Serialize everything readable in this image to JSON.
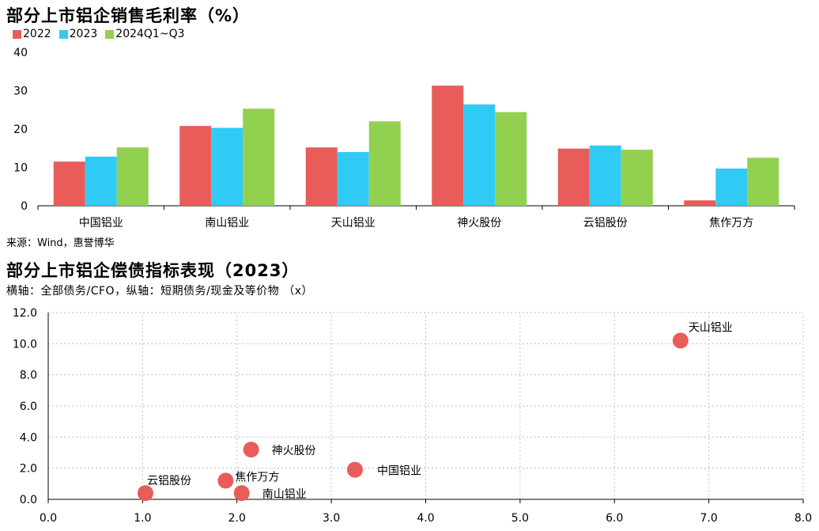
{
  "charts": {
    "bar_title": "部分上市铝企销售毛利率（%）",
    "bar_source": "来源：Wind，惠誉博华",
    "scatter_title": "部分上市铝企偿债指标表现（2023）",
    "scatter_subtitle": "横轴：全部债务/CFO，纵轴：短期债务/现金及等价物 （x）"
  },
  "chart_data": [
    {
      "type": "bar",
      "title": "部分上市铝企销售毛利率（%）",
      "categories": [
        "中国铝业",
        "南山铝业",
        "天山铝业",
        "神火股份",
        "云铝股份",
        "焦作万方"
      ],
      "series": [
        {
          "name": "2022",
          "color": "#e85c5a",
          "values": [
            11.5,
            20.8,
            15.2,
            31.3,
            14.9,
            1.4
          ]
        },
        {
          "name": "2023",
          "color": "#30cbf5",
          "values": [
            12.8,
            20.3,
            14.0,
            26.4,
            15.7,
            9.7
          ]
        },
        {
          "name": "2024Q1~Q3",
          "color": "#92d050",
          "values": [
            15.2,
            25.3,
            22.0,
            24.4,
            14.6,
            12.5
          ]
        }
      ],
      "ylim": [
        0,
        40
      ],
      "yticks": [
        0,
        10,
        20,
        30,
        40
      ],
      "grid": false,
      "legend": "top-left"
    },
    {
      "type": "scatter",
      "title": "部分上市铝企偿债指标表现（2023）",
      "xlabel": "全部债务/CFO",
      "ylabel": "短期债务/现金及等价物 （x）",
      "color": "#e85c5a",
      "points": [
        {
          "label": "天山铝业",
          "x": 6.7,
          "y": 10.2
        },
        {
          "label": "神火股份",
          "x": 2.15,
          "y": 3.2
        },
        {
          "label": "中国铝业",
          "x": 3.25,
          "y": 1.9
        },
        {
          "label": "焦作万方",
          "x": 1.88,
          "y": 1.2
        },
        {
          "label": "云铝股份",
          "x": 1.03,
          "y": 0.4
        },
        {
          "label": "南山铝业",
          "x": 2.05,
          "y": 0.4
        }
      ],
      "xlim": [
        0,
        8
      ],
      "ylim": [
        0,
        12
      ],
      "xticks": [
        "0.0",
        "1.0",
        "2.0",
        "3.0",
        "4.0",
        "5.0",
        "6.0",
        "7.0",
        "8.0"
      ],
      "yticks": [
        "0.0",
        "2.0",
        "4.0",
        "6.0",
        "8.0",
        "10.0",
        "12.0"
      ],
      "grid": true
    }
  ]
}
